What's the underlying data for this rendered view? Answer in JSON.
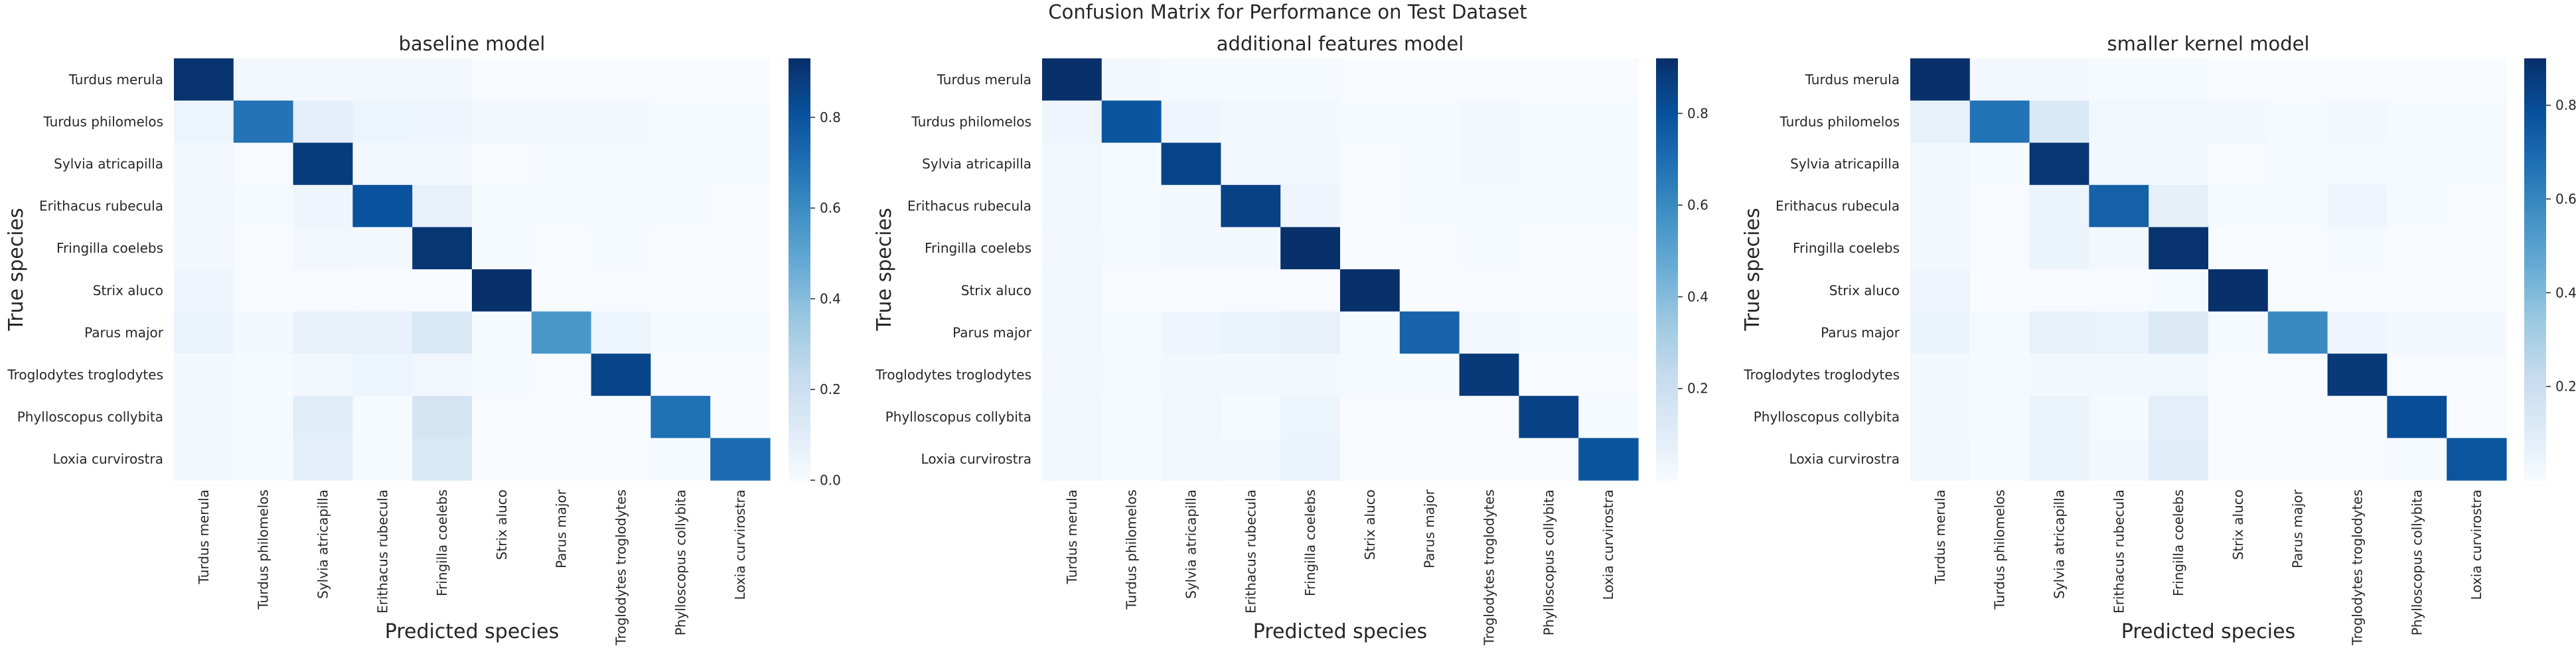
{
  "figure_title": "Confusion Matrix for Performance on Test Dataset",
  "chart_data": [
    {
      "type": "heatmap",
      "title": "baseline model",
      "xlabel": "Predicted species",
      "ylabel": "True species",
      "categories": [
        "Turdus merula",
        "Turdus philomelos",
        "Sylvia atricapilla",
        "Erithacus rubecula",
        "Fringilla coelebs",
        "Strix aluco",
        "Parus major",
        "Troglodytes troglodytes",
        "Phylloscopus collybita",
        "Loxia curvirostra"
      ],
      "colormap": "Blues",
      "vmin": 0,
      "vmax": 0.93,
      "colorbar_ticks": [
        "0.0",
        "0.2",
        "0.4",
        "0.6",
        "0.8"
      ],
      "colorbar_tick_values": [
        0,
        0.2,
        0.4,
        0.6,
        0.8
      ],
      "matrix": [
        [
          0.92,
          0.02,
          0.02,
          0.02,
          0.02,
          0.0,
          0.0,
          0.0,
          0.0,
          0.0
        ],
        [
          0.05,
          0.69,
          0.09,
          0.05,
          0.04,
          0.02,
          0.02,
          0.02,
          0.01,
          0.01
        ],
        [
          0.02,
          0.0,
          0.89,
          0.02,
          0.03,
          0.0,
          0.01,
          0.01,
          0.01,
          0.01
        ],
        [
          0.03,
          0.01,
          0.04,
          0.81,
          0.07,
          0.01,
          0.01,
          0.01,
          0.01,
          0.0
        ],
        [
          0.02,
          0.0,
          0.03,
          0.02,
          0.91,
          0.01,
          0.0,
          0.01,
          0.0,
          0.0
        ],
        [
          0.04,
          0.0,
          0.0,
          0.0,
          0.0,
          0.96,
          0.0,
          0.0,
          0.0,
          0.0
        ],
        [
          0.06,
          0.02,
          0.07,
          0.07,
          0.14,
          0.01,
          0.56,
          0.05,
          0.01,
          0.01
        ],
        [
          0.02,
          0.01,
          0.02,
          0.05,
          0.03,
          0.01,
          0.0,
          0.86,
          0.0,
          0.0
        ],
        [
          0.02,
          0.01,
          0.1,
          0.01,
          0.16,
          0.0,
          0.0,
          0.0,
          0.7,
          0.0
        ],
        [
          0.02,
          0.01,
          0.09,
          0.01,
          0.14,
          0.0,
          0.0,
          0.0,
          0.01,
          0.72
        ]
      ]
    },
    {
      "type": "heatmap",
      "title": "additional features model",
      "xlabel": "Predicted species",
      "ylabel": "True species",
      "categories": [
        "Turdus merula",
        "Turdus philomelos",
        "Sylvia atricapilla",
        "Erithacus rubecula",
        "Fringilla coelebs",
        "Strix aluco",
        "Parus major",
        "Troglodytes troglodytes",
        "Phylloscopus collybita",
        "Loxia curvirostra"
      ],
      "colormap": "Blues",
      "vmin": 0,
      "vmax": 0.92,
      "colorbar_ticks": [
        "0.2",
        "0.4",
        "0.6",
        "0.8"
      ],
      "colorbar_tick_values": [
        0.2,
        0.4,
        0.6,
        0.8
      ],
      "matrix": [
        [
          0.92,
          0.02,
          0.01,
          0.01,
          0.01,
          0.0,
          0.0,
          0.0,
          0.0,
          0.0
        ],
        [
          0.04,
          0.79,
          0.04,
          0.02,
          0.02,
          0.01,
          0.01,
          0.02,
          0.01,
          0.01
        ],
        [
          0.03,
          0.01,
          0.85,
          0.02,
          0.03,
          0.0,
          0.01,
          0.02,
          0.01,
          0.01
        ],
        [
          0.03,
          0.01,
          0.02,
          0.86,
          0.04,
          0.0,
          0.01,
          0.01,
          0.01,
          0.01
        ],
        [
          0.02,
          0.01,
          0.02,
          0.02,
          0.92,
          0.0,
          0.0,
          0.01,
          0.0,
          0.0
        ],
        [
          0.03,
          0.0,
          0.0,
          0.0,
          0.0,
          0.97,
          0.0,
          0.0,
          0.0,
          0.0
        ],
        [
          0.03,
          0.01,
          0.04,
          0.06,
          0.07,
          0.01,
          0.74,
          0.02,
          0.01,
          0.01
        ],
        [
          0.02,
          0.01,
          0.02,
          0.02,
          0.02,
          0.01,
          0.01,
          0.89,
          0.0,
          0.0
        ],
        [
          0.03,
          0.01,
          0.03,
          0.01,
          0.05,
          0.0,
          0.0,
          0.0,
          0.86,
          0.01
        ],
        [
          0.03,
          0.01,
          0.03,
          0.02,
          0.06,
          0.0,
          0.0,
          0.0,
          0.0,
          0.79
        ]
      ]
    },
    {
      "type": "heatmap",
      "title": "smaller kernel model",
      "xlabel": "Predicted species",
      "ylabel": "True species",
      "categories": [
        "Turdus merula",
        "Turdus philomelos",
        "Sylvia atricapilla",
        "Erithacus rubecula",
        "Fringilla coelebs",
        "Strix aluco",
        "Parus major",
        "Troglodytes troglodytes",
        "Phylloscopus collybita",
        "Loxia curvirostra"
      ],
      "colormap": "Blues",
      "vmin": 0,
      "vmax": 0.9,
      "colorbar_ticks": [
        "0.2",
        "0.4",
        "0.6",
        "0.8"
      ],
      "colorbar_tick_values": [
        0.2,
        0.4,
        0.6,
        0.8
      ],
      "matrix": [
        [
          0.9,
          0.02,
          0.02,
          0.01,
          0.01,
          0.0,
          0.0,
          0.0,
          0.0,
          0.0
        ],
        [
          0.07,
          0.67,
          0.13,
          0.03,
          0.03,
          0.02,
          0.01,
          0.02,
          0.01,
          0.01
        ],
        [
          0.03,
          0.01,
          0.88,
          0.02,
          0.02,
          0.0,
          0.01,
          0.01,
          0.01,
          0.01
        ],
        [
          0.03,
          0.0,
          0.05,
          0.73,
          0.08,
          0.01,
          0.01,
          0.04,
          0.01,
          0.0
        ],
        [
          0.02,
          0.0,
          0.05,
          0.02,
          0.89,
          0.0,
          0.0,
          0.01,
          0.0,
          0.0
        ],
        [
          0.04,
          0.0,
          0.0,
          0.0,
          0.01,
          0.95,
          0.0,
          0.0,
          0.0,
          0.0
        ],
        [
          0.05,
          0.01,
          0.07,
          0.06,
          0.12,
          0.01,
          0.59,
          0.04,
          0.02,
          0.02
        ],
        [
          0.02,
          0.01,
          0.02,
          0.02,
          0.03,
          0.0,
          0.0,
          0.87,
          0.0,
          0.0
        ],
        [
          0.02,
          0.01,
          0.05,
          0.01,
          0.09,
          0.0,
          0.0,
          0.0,
          0.8,
          0.0
        ],
        [
          0.03,
          0.01,
          0.05,
          0.02,
          0.1,
          0.0,
          0.0,
          0.0,
          0.01,
          0.77
        ]
      ]
    }
  ]
}
